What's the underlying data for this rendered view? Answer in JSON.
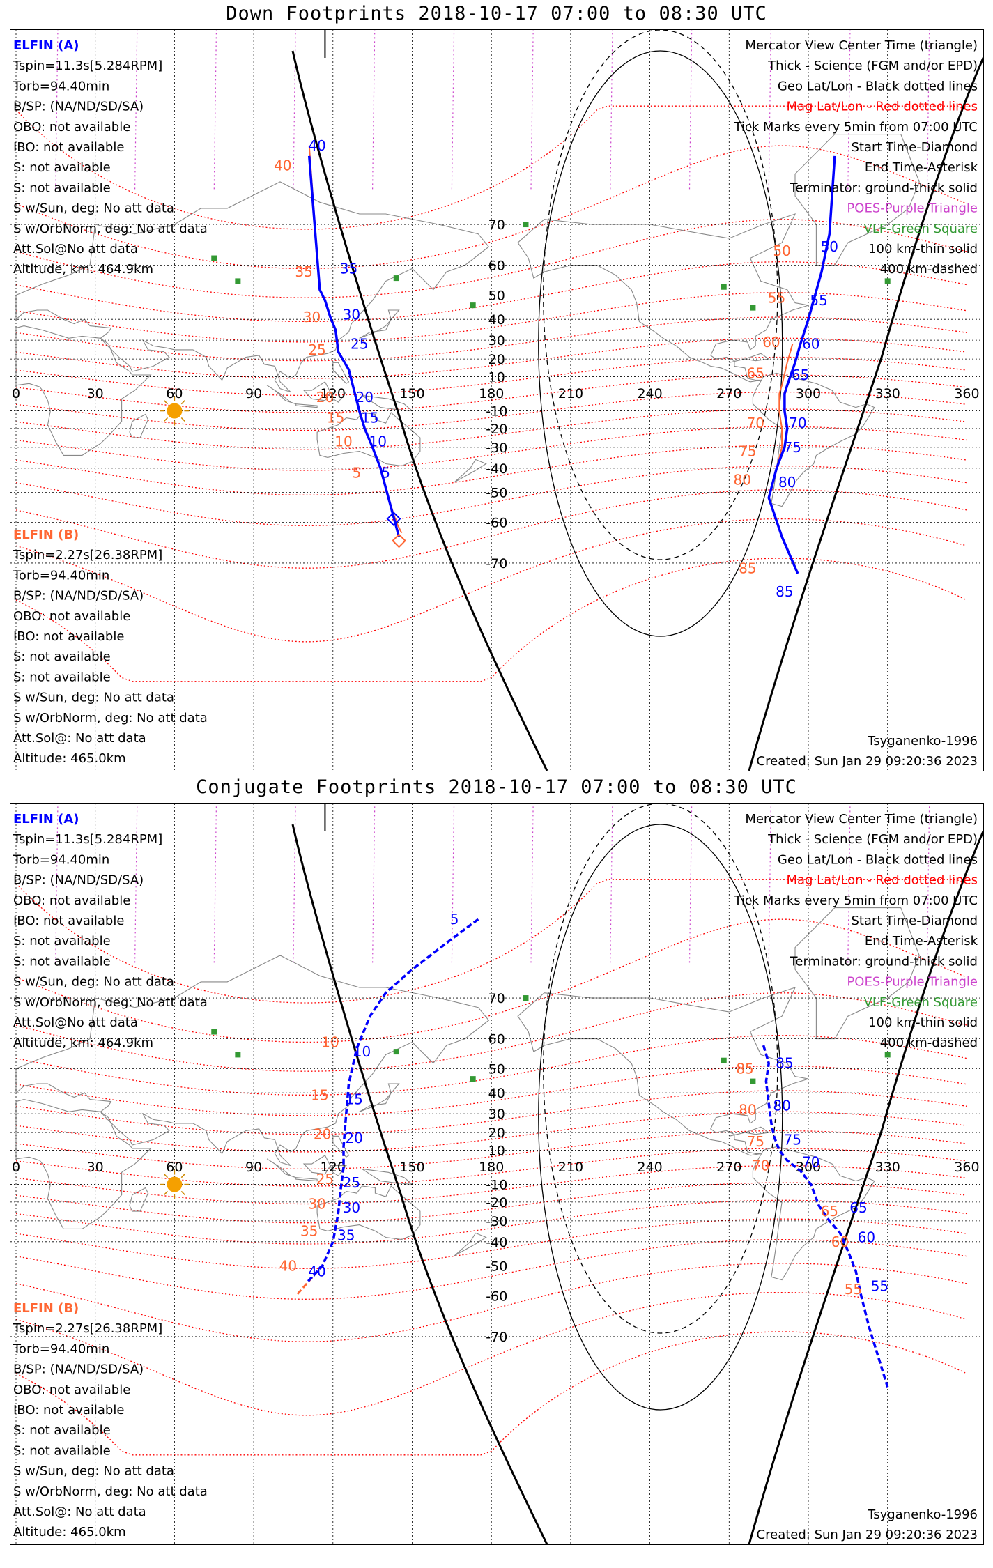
{
  "colors": {
    "elfin_a": "#0000ff",
    "elfin_b": "#ff6633",
    "mag_grid": "#ff0000",
    "geo_grid": "#000000",
    "poes": "#cc44cc",
    "vlf": "#339933",
    "terminator": "#000000",
    "sun": "#f5a000",
    "coast": "#888888"
  },
  "panels": [
    {
      "id": "down",
      "title": "Down Footprints 2018-10-17 07:00 to 08:30 UTC",
      "conjugate": false,
      "elfin_a": {
        "name": "ELFIN (A)",
        "lines": [
          "Tspin=11.3s[5.284RPM]",
          "Torb=94.40min",
          "B/SP: (NA/ND/SD/SA)",
          "OBO: not available",
          "IBO: not available",
          "S: not available",
          "S: not available",
          "S w/Sun, deg: No att data",
          "S w/OrbNorm, deg: No att data",
          "Att.Sol@No att data",
          "Altitude, km: 464.9km"
        ]
      },
      "elfin_b": {
        "name": "ELFIN (B)",
        "lines": [
          "Tspin=2.27s[26.38RPM]",
          "Torb=94.40min",
          "B/SP: (NA/ND/SD/SA)",
          "OBO: not available",
          "IBO: not available",
          "S: not available",
          "S: not available",
          "S w/Sun, deg: No att data",
          "S w/OrbNorm, deg: No att data",
          "Att.Sol@: No att data",
          "Altitude: 465.0km"
        ]
      },
      "legend": [
        "Mercator View Center Time (triangle)",
        "Thick - Science (FGM and/or EPD)",
        "Geo Lat/Lon - Black dotted lines",
        "Mag Lat/Lon - Red dotted lines",
        "Tick Marks every 5min from 07:00 UTC",
        "Start Time-Diamond",
        "End Time-Asterisk",
        "Terminator: ground-thick solid",
        "POES-Purple Triangle",
        "VLF-Green Square",
        "100 km-thin solid",
        "400 km-dashed"
      ],
      "model": "Tsyganenko-1996",
      "created": "Created: Sun Jan 29 09:20:36 2023",
      "lon_labels": [
        "0",
        "30",
        "60",
        "90",
        "120",
        "150",
        "180",
        "210",
        "240",
        "270",
        "300",
        "330",
        "360"
      ],
      "lat_labels": [
        "70",
        "60",
        "50",
        "40",
        "30",
        "20",
        "10",
        "-10",
        "-20",
        "-30",
        "-40",
        "-50",
        "-60",
        "-70"
      ],
      "track_a": {
        "segments": [
          [
            [
              111,
              80
            ],
            [
              115,
              52
            ],
            [
              117,
              48
            ],
            [
              119,
              41
            ],
            [
              121,
              35
            ],
            [
              122,
              24
            ],
            [
              126,
              14
            ],
            [
              128,
              2
            ],
            [
              130,
              -10
            ],
            [
              132,
              -20
            ],
            [
              135,
              -30
            ],
            [
              138,
              -40
            ],
            [
              141,
              -52
            ],
            [
              145,
              -64
            ]
          ],
          [
            [
              296,
              -72
            ],
            [
              290,
              -64
            ],
            [
              285,
              -52
            ],
            [
              288,
              -40
            ],
            [
              291,
              -30
            ],
            [
              292,
              -20
            ],
            [
              291,
              -10
            ],
            [
              291,
              0
            ],
            [
              292,
              5
            ],
            [
              295,
              18
            ],
            [
              297,
              28
            ],
            [
              300,
              40
            ],
            [
              302,
              48
            ],
            [
              305,
              58
            ],
            [
              308,
              68
            ],
            [
              310,
              80
            ]
          ]
        ],
        "ticks": [
          {
            "label": "40",
            "lon": 114,
            "lat": 81
          },
          {
            "label": "35",
            "lon": 126,
            "lat": 59
          },
          {
            "label": "30",
            "lon": 127,
            "lat": 42
          },
          {
            "label": "25",
            "lon": 130,
            "lat": 28
          },
          {
            "label": "20",
            "lon": 132,
            "lat": -2
          },
          {
            "label": "15",
            "lon": 134,
            "lat": -14
          },
          {
            "label": "10",
            "lon": 137,
            "lat": -27
          },
          {
            "label": "5",
            "lon": 140,
            "lat": -42
          },
          {
            "label": "85",
            "lon": 291,
            "lat": -75
          },
          {
            "label": "80",
            "lon": 292,
            "lat": -46
          },
          {
            "label": "75",
            "lon": 294,
            "lat": -30
          },
          {
            "label": "70",
            "lon": 296,
            "lat": -17
          },
          {
            "label": "65",
            "lon": 297,
            "lat": 11
          },
          {
            "label": "60",
            "lon": 301,
            "lat": 28
          },
          {
            "label": "55",
            "lon": 304,
            "lat": 48
          },
          {
            "label": "50",
            "lon": 308,
            "lat": 65
          }
        ],
        "start": {
          "lon": 143,
          "lat": -59
        }
      },
      "track_b": {
        "segments": [
          [
            [
              111,
              81
            ],
            [
              115,
              52
            ],
            [
              117,
              48
            ],
            [
              119,
              41
            ],
            [
              121,
              35
            ],
            [
              122,
              24
            ],
            [
              126,
              14
            ],
            [
              128,
              2
            ],
            [
              130,
              -10
            ],
            [
              132,
              -20
            ],
            [
              135,
              -30
            ],
            [
              138,
              -40
            ],
            [
              141,
              -52
            ],
            [
              144,
              -60
            ],
            [
              146,
              -63
            ]
          ],
          [
            [
              290,
              -64
            ],
            [
              285,
              -52
            ],
            [
              288,
              -40
            ],
            [
              290,
              -30
            ],
            [
              290,
              -20
            ],
            [
              289,
              -10
            ],
            [
              289,
              0
            ],
            [
              290,
              5
            ],
            [
              292,
              18
            ],
            [
              294,
              28
            ]
          ]
        ],
        "ticks": [
          {
            "label": "40",
            "lon": 101,
            "lat": 79
          },
          {
            "label": "35",
            "lon": 109,
            "lat": 58
          },
          {
            "label": "30",
            "lon": 112,
            "lat": 41
          },
          {
            "label": "25",
            "lon": 114,
            "lat": 25
          },
          {
            "label": "20",
            "lon": 117,
            "lat": -2
          },
          {
            "label": "15",
            "lon": 121,
            "lat": -14
          },
          {
            "label": "10",
            "lon": 124,
            "lat": -27
          },
          {
            "label": "5",
            "lon": 129,
            "lat": -42
          },
          {
            "label": "85",
            "lon": 277,
            "lat": -71
          },
          {
            "label": "80",
            "lon": 275,
            "lat": -45
          },
          {
            "label": "75",
            "lon": 277,
            "lat": -32
          },
          {
            "label": "70",
            "lon": 280,
            "lat": -17
          },
          {
            "label": "65",
            "lon": 280,
            "lat": 12
          },
          {
            "label": "60",
            "lon": 286,
            "lat": 29
          },
          {
            "label": "55",
            "lon": 288,
            "lat": 49
          },
          {
            "label": "50",
            "lon": 290,
            "lat": 64
          }
        ],
        "start": {
          "lon": 145,
          "lat": -65
        }
      }
    },
    {
      "id": "conj",
      "title": "Conjugate Footprints 2018-10-17 07:00 to 08:30 UTC",
      "conjugate": true,
      "elfin_a": {
        "name": "ELFIN (A)",
        "lines": [
          "Tspin=11.3s[5.284RPM]",
          "Torb=94.40min",
          "B/SP: (NA/ND/SD/SA)",
          "OBO: not available",
          "IBO: not available",
          "S: not available",
          "S: not available",
          "S w/Sun, deg: No att data",
          "S w/OrbNorm, deg: No att data",
          "Att.Sol@No att data",
          "Altitude, km: 464.9km"
        ]
      },
      "elfin_b": {
        "name": "ELFIN (B)",
        "lines": [
          "Tspin=2.27s[26.38RPM]",
          "Torb=94.40min",
          "B/SP: (NA/ND/SD/SA)",
          "OBO: not available",
          "IBO: not available",
          "S: not available",
          "S: not available",
          "S w/Sun, deg: No att data",
          "S w/OrbNorm, deg: No att data",
          "Att.Sol@: No att data",
          "Altitude: 465.0km"
        ]
      },
      "legend": [
        "Mercator View Center Time (triangle)",
        "Thick - Science (FGM and/or EPD)",
        "Geo Lat/Lon - Black dotted lines",
        "Mag Lat/Lon - Red dotted lines",
        "Tick Marks every 5min from 07:00 UTC",
        "Start Time-Diamond",
        "End Time-Asterisk",
        "Terminator: ground-thick solid",
        "POES-Purple Triangle",
        "VLF-Green Square",
        "100 km-thin solid",
        "400 km-dashed"
      ],
      "model": "Tsyganenko-1996",
      "created": "Created: Sun Jan 29 09:20:36 2023",
      "lon_labels": [
        "0",
        "30",
        "60",
        "90",
        "120",
        "150",
        "180",
        "210",
        "240",
        "270",
        "300",
        "330",
        "360"
      ],
      "lat_labels": [
        "70",
        "60",
        "50",
        "40",
        "30",
        "20",
        "10",
        "-10",
        "-20",
        "-30",
        "-40",
        "-50",
        "-60",
        "-70"
      ],
      "track_a": {
        "segments": [
          [
            [
              175,
              81
            ],
            [
              165,
              79
            ],
            [
              150,
              75
            ],
            [
              140,
              71
            ],
            [
              134,
              66
            ],
            [
              129,
              57
            ],
            [
              126,
              44
            ],
            [
              125,
              30
            ],
            [
              124,
              12
            ],
            [
              124,
              0
            ],
            [
              123,
              -12
            ],
            [
              122,
              -26
            ],
            [
              120,
              -40
            ],
            [
              116,
              -50
            ],
            [
              110,
              -56
            ]
          ],
          [
            [
              283,
              58
            ],
            [
              285,
              52
            ],
            [
              284,
              45
            ],
            [
              285,
              35
            ],
            [
              286,
              25
            ],
            [
              287,
              18
            ],
            [
              289,
              10
            ],
            [
              292,
              4
            ],
            [
              297,
              -2
            ],
            [
              301,
              -10
            ],
            [
              304,
              -22
            ],
            [
              308,
              -30
            ],
            [
              312,
              -36
            ],
            [
              315,
              -44
            ],
            [
              318,
              -52
            ],
            [
              320,
              -60
            ],
            [
              323,
              -68
            ],
            [
              330,
              -78
            ]
          ]
        ],
        "ticks": [
          {
            "label": "5",
            "lon": 166,
            "lat": 81
          },
          {
            "label": "10",
            "lon": 131,
            "lat": 56
          },
          {
            "label": "15",
            "lon": 128,
            "lat": 37
          },
          {
            "label": "20",
            "lon": 128,
            "lat": 17
          },
          {
            "label": "25",
            "lon": 127,
            "lat": -9
          },
          {
            "label": "30",
            "lon": 127,
            "lat": -23
          },
          {
            "label": "35",
            "lon": 125,
            "lat": -37
          },
          {
            "label": "40",
            "lon": 114,
            "lat": -52
          },
          {
            "label": "85",
            "lon": 291,
            "lat": 52
          },
          {
            "label": "80",
            "lon": 290,
            "lat": 34
          },
          {
            "label": "75",
            "lon": 294,
            "lat": 16
          },
          {
            "label": "70",
            "lon": 301,
            "lat": 3
          },
          {
            "label": "65",
            "lon": 319,
            "lat": -23
          },
          {
            "label": "60",
            "lon": 322,
            "lat": -38
          },
          {
            "label": "55",
            "lon": 327,
            "lat": -57
          }
        ]
      },
      "track_b": {
        "segments": [
          [
            [
              175,
              81
            ],
            [
              165,
              79
            ],
            [
              150,
              75
            ],
            [
              140,
              71
            ],
            [
              134,
              66
            ],
            [
              129,
              57
            ],
            [
              126,
              44
            ],
            [
              125,
              30
            ],
            [
              124,
              12
            ],
            [
              124,
              0
            ],
            [
              123,
              -12
            ],
            [
              122,
              -26
            ],
            [
              120,
              -40
            ],
            [
              116,
              -50
            ],
            [
              106,
              -60
            ]
          ],
          [
            [
              283,
              58
            ],
            [
              285,
              52
            ],
            [
              284,
              45
            ],
            [
              285,
              35
            ],
            [
              286,
              25
            ],
            [
              287,
              18
            ],
            [
              289,
              10
            ],
            [
              292,
              4
            ],
            [
              297,
              -2
            ],
            [
              301,
              -10
            ],
            [
              304,
              -22
            ],
            [
              308,
              -30
            ],
            [
              312,
              -36
            ],
            [
              315,
              -44
            ],
            [
              318,
              -52
            ],
            [
              320,
              -60
            ],
            [
              323,
              -68
            ],
            [
              330,
              -78
            ]
          ]
        ],
        "ticks": [
          {
            "label": "10",
            "lon": 119,
            "lat": 59
          },
          {
            "label": "15",
            "lon": 115,
            "lat": 39
          },
          {
            "label": "20",
            "lon": 116,
            "lat": 19
          },
          {
            "label": "25",
            "lon": 117,
            "lat": -7
          },
          {
            "label": "30",
            "lon": 114,
            "lat": -21
          },
          {
            "label": "35",
            "lon": 111,
            "lat": -35
          },
          {
            "label": "40",
            "lon": 103,
            "lat": -50
          },
          {
            "label": "85",
            "lon": 276,
            "lat": 50
          },
          {
            "label": "80",
            "lon": 277,
            "lat": 32
          },
          {
            "label": "75",
            "lon": 280,
            "lat": 15
          },
          {
            "label": "70",
            "lon": 282,
            "lat": 1
          },
          {
            "label": "65",
            "lon": 308,
            "lat": -25
          },
          {
            "label": "60",
            "lon": 312,
            "lat": -40
          },
          {
            "label": "55",
            "lon": 317,
            "lat": -58
          }
        ]
      }
    }
  ]
}
